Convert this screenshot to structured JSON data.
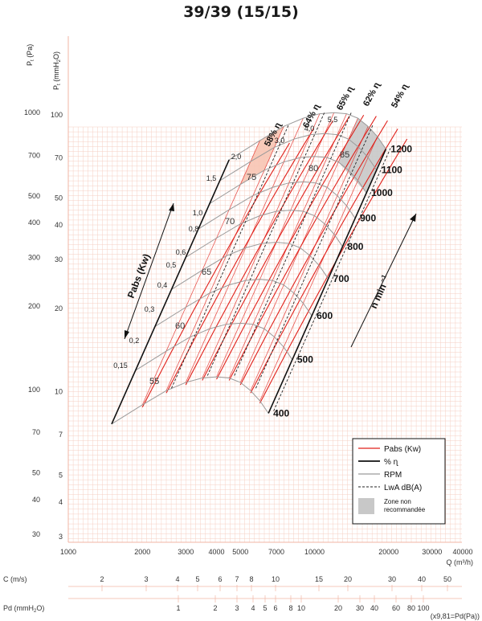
{
  "title": "39/39 (15/15)",
  "colors": {
    "grid": "#f6cfc3",
    "pabs": "#e0201a",
    "rpm": "#9a9a9a",
    "eff": "#111111",
    "zone": "#c8c8c8",
    "zone_low": "#f7c4b2"
  },
  "axis_labels": {
    "y_pa": "P",
    "y_pa_sub": "t",
    "y_pa_unit": "(Pa)",
    "y_mm": "P",
    "y_mm_sub": "t",
    "y_mm_unit": "(mmH",
    "y_mm_sub2": "2",
    "y_mm_unit2": "O)",
    "x_q": "Q (m³/h)",
    "c_label": "C (m/s)",
    "pd_label": "Pd (mmH",
    "pd_sub": "2",
    "pd_tail": "O)",
    "pd_note": "(x9,81=Pd(Pa))",
    "pabs_axis": "Pabs (Kw)",
    "n_axis": "n  min",
    "n_exp": "−1"
  },
  "legend": {
    "pabs": "Pabs (Kw)",
    "eff": "% ɳ",
    "rpm": "RPM",
    "lwa": "LwA dB(A)",
    "zone": "Zone non recommandée"
  },
  "chart_data": {
    "type": "line",
    "title": "39/39 (15/15)",
    "x_axis": {
      "label": "Q (m³/h)",
      "scale": "log",
      "range": [
        1000,
        40000
      ],
      "ticks": [
        1000,
        2000,
        3000,
        4000,
        5000,
        7000,
        10000,
        20000,
        30000,
        40000
      ]
    },
    "y_axis_pa": {
      "label": "Pt (Pa)",
      "scale": "log",
      "range": [
        30,
        1000
      ],
      "ticks": [
        1000,
        700,
        500,
        400,
        300,
        200,
        100,
        70,
        50,
        40,
        30
      ]
    },
    "y_axis_mmh2o": {
      "label": "Pt (mmH2O)",
      "scale": "log",
      "ticks": [
        100,
        70,
        50,
        40,
        30,
        20,
        10,
        7,
        5,
        4,
        3
      ]
    },
    "c_axis": {
      "label": "C (m/s)",
      "ticks": [
        "2",
        "3",
        "4",
        "5",
        "6",
        "7",
        "8",
        "10",
        "15",
        "20",
        "30",
        "40",
        "50"
      ]
    },
    "pd_axis": {
      "label": "Pd (mmH2O)",
      "ticks": [
        "1",
        "2",
        "3",
        "4",
        "5",
        "6",
        "8",
        "10",
        "20",
        "30",
        "40",
        "60",
        "80",
        "100"
      ],
      "note": "(x9,81=Pd(Pa))"
    },
    "rpm_curves": [
      400,
      500,
      600,
      700,
      800,
      900,
      1000,
      1100,
      1200
    ],
    "pabs_kw_labels": [
      "0,15",
      "0,2",
      "0,3",
      "0,4",
      "0,5",
      "0,6",
      "0,8",
      "1,0",
      "1,5",
      "2,0",
      "3,0",
      "4,0",
      "5,5"
    ],
    "efficiency_labels": [
      "58% ɳ",
      "64% ɳ",
      "65% ɳ",
      "62% ɳ",
      "54% ɳ"
    ],
    "lwa_db_labels": [
      "55",
      "60",
      "65",
      "70",
      "75",
      "80",
      "85"
    ],
    "legend": [
      "Pabs (Kw)",
      "% ɳ",
      "RPM",
      "LwA dB(A)",
      "Zone non recommandée"
    ]
  }
}
